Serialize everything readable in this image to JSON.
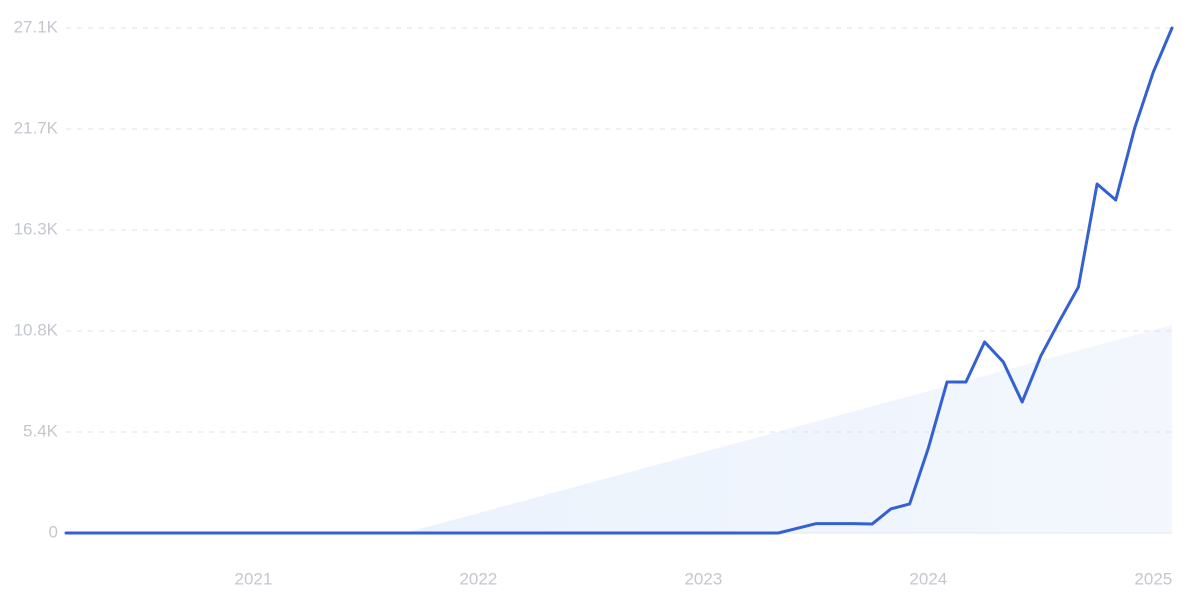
{
  "chart_data": {
    "type": "line",
    "color": "#3461d1",
    "x": [
      2020.167,
      2020.25,
      2020.333,
      2020.417,
      2020.5,
      2020.583,
      2020.667,
      2020.75,
      2020.833,
      2020.917,
      2021,
      2021.083,
      2021.167,
      2021.25,
      2021.333,
      2021.417,
      2021.5,
      2021.583,
      2021.667,
      2021.75,
      2021.833,
      2021.917,
      2022,
      2022.083,
      2022.167,
      2022.25,
      2022.333,
      2022.417,
      2022.5,
      2022.583,
      2022.667,
      2022.75,
      2022.833,
      2022.917,
      2023,
      2023.083,
      2023.167,
      2023.25,
      2023.333,
      2023.417,
      2023.5,
      2023.583,
      2023.667,
      2023.75,
      2023.833,
      2023.917,
      2024,
      2024.083,
      2024.167,
      2024.25,
      2024.333,
      2024.417,
      2024.5,
      2024.583,
      2024.667,
      2024.75,
      2024.833,
      2024.917,
      2025,
      2025.083
    ],
    "values": [
      0,
      0,
      0,
      0,
      0,
      0,
      0,
      0,
      0,
      0,
      0,
      0,
      0,
      0,
      0,
      0,
      0,
      0,
      0,
      0,
      0,
      0,
      0,
      0,
      0,
      0,
      0,
      0,
      0,
      0,
      0,
      0,
      0,
      0,
      0,
      0,
      0,
      0,
      0,
      250,
      500,
      500,
      500,
      480,
      1290,
      1560,
      4560,
      8100,
      8100,
      10250,
      9180,
      7030,
      9500,
      11380,
      13200,
      18730,
      17870,
      21730,
      24740,
      27100
    ],
    "xlim": [
      2020.167,
      2025.083
    ],
    "xticks": [
      2021,
      2022,
      2023,
      2024,
      2025
    ],
    "ylim": [
      0,
      27100
    ],
    "yticks": [
      0,
      {
        "value": 5420,
        "label": "5.4K"
      },
      {
        "value": 10840,
        "label": "10.8K"
      },
      {
        "value": 16260,
        "label": "16.3K"
      },
      {
        "value": 21680,
        "label": "21.7K"
      },
      {
        "value": 27100,
        "label": "27.1K"
      }
    ],
    "grid": true
  }
}
